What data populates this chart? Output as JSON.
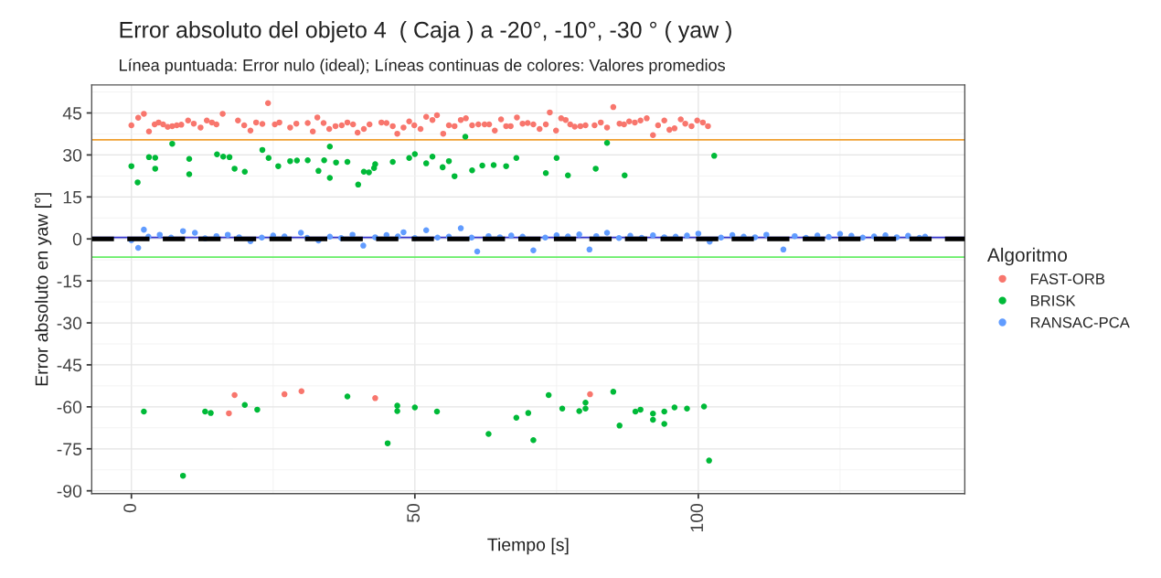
{
  "chart_data": {
    "type": "scatter",
    "title": "Error absoluto del objeto 4  ( Caja ) a -20°, -10°, -30 ° ( yaw )",
    "subtitle": "Línea puntuada: Error nulo (ideal); Líneas continuas de colores: Valores promedios",
    "xlabel": "Tiempo [s]",
    "ylabel": "Error absoluto en yaw [°]",
    "legend_title": "Algoritmo",
    "xlim": [
      -7,
      147
    ],
    "ylim": [
      -91,
      55
    ],
    "xticks": [
      0,
      50,
      100
    ],
    "yticks": [
      45,
      30,
      15,
      0,
      -15,
      -30,
      -45,
      -60,
      -75,
      -90
    ],
    "grid": true,
    "legend": "right",
    "marker": "circle",
    "series": [
      {
        "name": "FAST-ORB",
        "color": "#f8766d",
        "x": [
          0.0,
          1.2,
          2.2,
          3.1,
          4.1,
          4.8,
          5.6,
          6.4,
          7.2,
          8.0,
          8.8,
          10.0,
          11.0,
          12.2,
          13.3,
          14.2,
          15.0,
          16.1,
          18.8,
          19.9,
          21.0,
          22.0,
          23.1,
          24.1,
          25.3,
          26.1,
          28.0,
          29.1,
          31.1,
          32.0,
          32.8,
          33.9,
          34.9,
          36.0,
          37.1,
          38.1,
          39.1,
          39.9,
          41.0,
          42.0,
          44.1,
          45.0,
          46.1,
          46.9,
          48.0,
          49.0,
          49.9,
          51.0,
          52.0,
          53.1,
          53.9,
          55.0,
          56.0,
          57.0,
          58.1,
          59.0,
          60.1,
          61.2,
          62.3,
          63.1,
          64.1,
          65.2,
          66.1,
          66.9,
          68.0,
          69.0,
          69.9,
          70.9,
          72.0,
          73.1,
          73.8,
          74.9,
          75.8,
          76.6,
          77.4,
          78.2,
          79.2,
          80.1,
          81.7,
          82.8,
          83.9,
          85.0,
          86.1,
          86.9,
          87.8,
          88.8,
          89.8,
          90.9,
          92.0,
          92.9,
          94.0,
          94.9,
          95.8,
          96.9,
          97.7,
          98.8,
          99.8,
          100.8,
          101.7,
          18.2,
          17.2,
          27.0,
          30.0,
          43.0,
          80.9
        ],
        "values": [
          40.6,
          43.3,
          44.7,
          38.4,
          40.9,
          41.6,
          40.9,
          40.0,
          40.3,
          40.6,
          40.8,
          42.3,
          41.2,
          39.8,
          42.3,
          41.6,
          40.9,
          44.7,
          42.3,
          40.6,
          38.7,
          41.6,
          41.1,
          48.5,
          40.9,
          41.6,
          39.8,
          41.2,
          41.4,
          38.4,
          43.4,
          41.4,
          39.3,
          40.3,
          40.6,
          41.6,
          40.9,
          38.0,
          39.3,
          40.9,
          41.6,
          41.4,
          40.3,
          37.6,
          39.8,
          42.0,
          40.6,
          39.3,
          43.6,
          42.5,
          44.2,
          37.6,
          40.6,
          40.3,
          42.5,
          43.1,
          40.6,
          40.9,
          40.9,
          40.9,
          38.7,
          42.7,
          40.3,
          40.3,
          43.4,
          41.2,
          41.4,
          40.9,
          39.3,
          40.9,
          45.2,
          38.7,
          43.1,
          42.5,
          40.9,
          40.1,
          40.3,
          40.6,
          40.6,
          41.6,
          39.8,
          47.1,
          41.2,
          40.9,
          42.0,
          41.6,
          42.3,
          43.1,
          37.1,
          40.6,
          42.3,
          39.0,
          39.5,
          42.7,
          41.2,
          40.3,
          42.3,
          41.6,
          40.3,
          -55.8,
          -62.3,
          -55.5,
          -54.4,
          -56.9,
          -55.5
        ]
      },
      {
        "name": "BRISK",
        "color": "#00ba38",
        "x": [
          0.0,
          1.1,
          3.1,
          4.2,
          4.2,
          7.2,
          10.2,
          10.2,
          15.1,
          16.2,
          17.3,
          18.2,
          20.0,
          23.1,
          24.2,
          25.9,
          28.0,
          29.2,
          31.1,
          33.0,
          34.0,
          35.0,
          35.0,
          36.1,
          38.1,
          40.0,
          41.0,
          41.9,
          42.8,
          43.0,
          46.1,
          49.0,
          50.0,
          52.0,
          53.1,
          54.9,
          56.0,
          57.0,
          58.9,
          60.1,
          61.9,
          63.9,
          66.1,
          67.9,
          73.1,
          75.0,
          77.0,
          81.9,
          83.9,
          87.0,
          102.8,
          2.2,
          9.1,
          13.0,
          14.0,
          20.0,
          22.2,
          38.1,
          45.2,
          46.9,
          46.9,
          50.0,
          53.9,
          63.0,
          67.9,
          70.0,
          70.9,
          73.6,
          76.0,
          79.0,
          80.1,
          80.1,
          85.0,
          86.1,
          88.9,
          89.8,
          92.0,
          92.0,
          94.0,
          94.0,
          95.8,
          98.0,
          101.0,
          101.9
        ],
        "values": [
          26.0,
          20.2,
          29.2,
          29.0,
          25.1,
          34.0,
          28.6,
          23.1,
          30.2,
          29.4,
          29.2,
          25.1,
          24.0,
          31.8,
          28.9,
          26.0,
          27.8,
          28.0,
          28.1,
          24.3,
          28.1,
          33.0,
          21.8,
          27.3,
          27.5,
          19.4,
          24.0,
          23.8,
          25.3,
          26.7,
          27.5,
          28.9,
          30.3,
          27.0,
          29.4,
          25.6,
          27.8,
          22.4,
          36.5,
          24.5,
          26.2,
          26.4,
          26.0,
          28.9,
          23.5,
          28.9,
          22.7,
          25.1,
          34.3,
          22.7,
          29.7,
          -61.7,
          -84.6,
          -61.7,
          -62.2,
          -59.3,
          -61.0,
          -56.3,
          -73.0,
          -59.6,
          -61.5,
          -60.2,
          -61.7,
          -69.7,
          -63.9,
          -62.2,
          -71.9,
          -55.8,
          -60.6,
          -61.5,
          -60.6,
          -58.5,
          -54.6,
          -66.7,
          -61.7,
          -61.0,
          -62.4,
          -64.6,
          -61.7,
          -66.1,
          -60.2,
          -60.6,
          -59.9,
          -79.2
        ]
      },
      {
        "name": "RANSAC-PCA",
        "color": "#619cff",
        "x": [
          0,
          1.2,
          2.2,
          3,
          5,
          7,
          9.1,
          11.2,
          13,
          15,
          17,
          19,
          21,
          23,
          25,
          27,
          29.9,
          31,
          33,
          35,
          37,
          39,
          40.9,
          43,
          45,
          47,
          48,
          50,
          52,
          54,
          56,
          58.1,
          60,
          61,
          63,
          65,
          67,
          69,
          70.9,
          73,
          75,
          77,
          79,
          80.8,
          82,
          83.9,
          86,
          88,
          90,
          92,
          94,
          96,
          98,
          100,
          102,
          104,
          106,
          108,
          110,
          112,
          115,
          117,
          119,
          121,
          123,
          125,
          127,
          129,
          131,
          133,
          135,
          137,
          139,
          140
        ],
        "values": [
          -0.5,
          -3.2,
          3.3,
          0.8,
          1.5,
          0.5,
          2.8,
          2.2,
          0.2,
          1.0,
          1.5,
          0.6,
          -0.8,
          0.5,
          1.2,
          0.9,
          2.2,
          0.4,
          -0.6,
          0.8,
          0.3,
          1.5,
          -2.4,
          0.6,
          1.4,
          0.9,
          2.4,
          0.3,
          3.1,
          0.5,
          0.8,
          3.8,
          0.5,
          -4.5,
          1.0,
          0.6,
          1.2,
          0.8,
          -4.1,
          0.5,
          1.3,
          0.9,
          1.6,
          -3.8,
          1.0,
          2.2,
          0.3,
          1.1,
          0.4,
          1.3,
          0.6,
          0.8,
          1.2,
          1.9,
          -1.0,
          0.5,
          1.4,
          0.8,
          0.6,
          1.5,
          -3.8,
          1.0,
          0.4,
          1.2,
          0.7,
          1.8,
          1.1,
          0.5,
          0.9,
          1.3,
          0.6,
          1.1,
          0.4,
          0.8
        ]
      }
    ],
    "ref_lines": [
      {
        "axis": "y",
        "value": 35.4,
        "color": "#f0a030"
      },
      {
        "axis": "y",
        "value": -6.5,
        "color": "#66ee66"
      },
      {
        "axis": "y",
        "value": 0.5,
        "color": "#3333cc"
      },
      {
        "axis": "y",
        "value": 0,
        "color": "#000000",
        "line_style": "dashed"
      }
    ]
  }
}
